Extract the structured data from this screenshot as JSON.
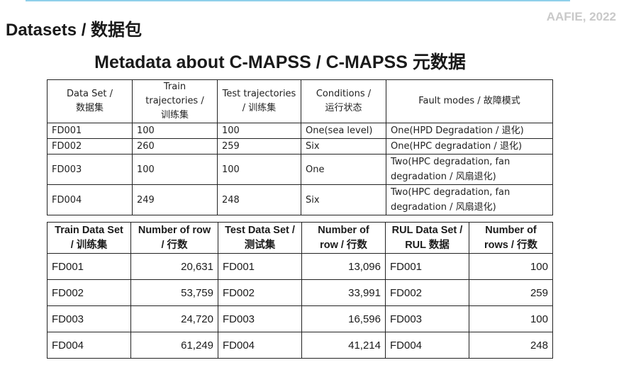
{
  "watermark": "AAFIE, 2022",
  "page_title": "Datasets / 数据包",
  "meta_title": "Metadata about C-MAPSS / C-MAPSS 元数据",
  "metadata_table": {
    "headers": [
      [
        "Data Set /",
        "数据集"
      ],
      [
        "Train",
        "trajectories /",
        "训练集"
      ],
      [
        "Test trajectories",
        "/ 训练集"
      ],
      [
        "Conditions /",
        "运行状态"
      ],
      [
        "Fault modes / 故障模式"
      ]
    ],
    "rows": [
      {
        "dataset": "FD001",
        "train": "100",
        "test": "100",
        "conditions": "One(sea level)",
        "fault": [
          "One(HPD Degradation / 退化)"
        ]
      },
      {
        "dataset": "FD002",
        "train": "260",
        "test": "259",
        "conditions": "Six",
        "fault": [
          "One(HPC degradation / 退化)"
        ]
      },
      {
        "dataset": "FD003",
        "train": "100",
        "test": "100",
        "conditions": "One",
        "fault": [
          "Two(HPC degradation, fan",
          "degradation / 风扇退化)"
        ]
      },
      {
        "dataset": "FD004",
        "train": "249",
        "test": "248",
        "conditions": "Six",
        "fault": [
          "Two(HPC degradation, fan",
          "degradation / 风扇退化)"
        ]
      }
    ]
  },
  "rows_table": {
    "headers": [
      [
        "Train Data Set",
        "/ 训练集"
      ],
      [
        "Number of row",
        "/ 行数"
      ],
      [
        "Test Data Set /",
        "测试集"
      ],
      [
        "Number of",
        "row / 行数"
      ],
      [
        "RUL Data Set /",
        "RUL 数据"
      ],
      [
        "Number of",
        "rows / 行数"
      ]
    ],
    "rows": [
      {
        "train_set": "FD001",
        "train_rows": "20,631",
        "test_set": "FD001",
        "test_rows": "13,096",
        "rul_set": "FD001",
        "rul_rows": "100"
      },
      {
        "train_set": "FD002",
        "train_rows": "53,759",
        "test_set": "FD002",
        "test_rows": "33,991",
        "rul_set": "FD002",
        "rul_rows": "259"
      },
      {
        "train_set": "FD003",
        "train_rows": "24,720",
        "test_set": "FD003",
        "test_rows": "16,596",
        "rul_set": "FD003",
        "rul_rows": "100"
      },
      {
        "train_set": "FD004",
        "train_rows": "61,249",
        "test_set": "FD004",
        "test_rows": "41,214",
        "rul_set": "FD004",
        "rul_rows": "248"
      }
    ]
  }
}
